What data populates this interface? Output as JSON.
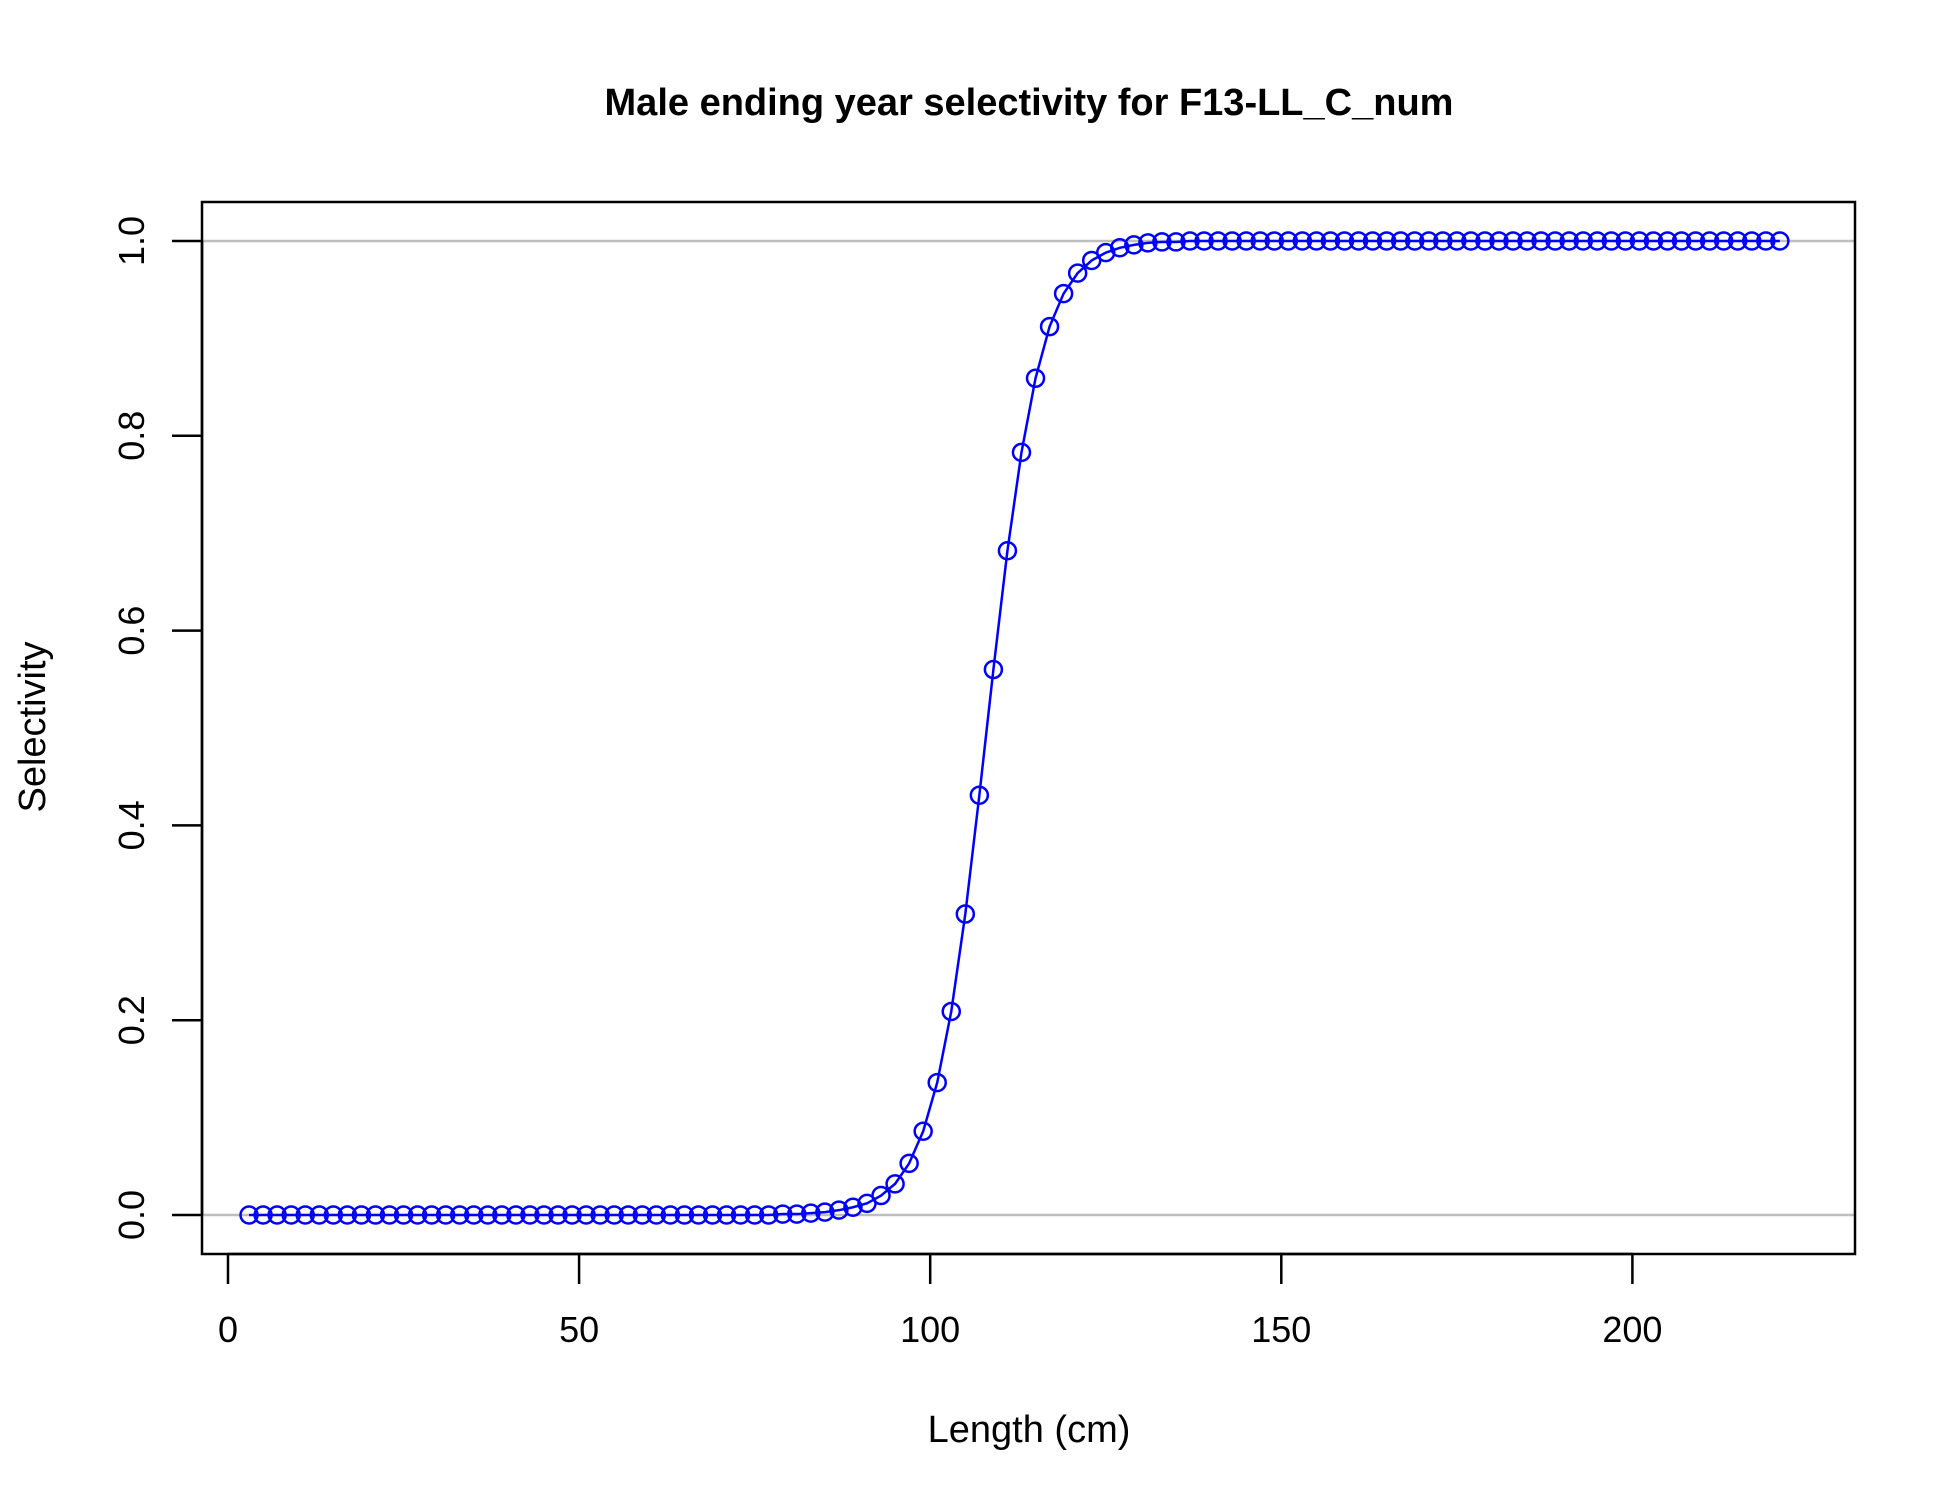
{
  "chart_data": {
    "type": "line",
    "title": "Male ending year selectivity for F13-LL_C_num",
    "xlabel": "Length (cm)",
    "ylabel": "Selectivity",
    "xlim": [
      -3.7,
      231.7
    ],
    "ylim": [
      -0.04,
      1.04
    ],
    "xticks": [
      0,
      50,
      100,
      150,
      200
    ],
    "yticks": [
      0.0,
      0.2,
      0.4,
      0.6,
      0.8,
      1.0
    ],
    "xtick_labels": [
      "0",
      "50",
      "100",
      "150",
      "200"
    ],
    "ytick_labels": [
      "0.0",
      "0.2",
      "0.4",
      "0.6",
      "0.8",
      "1.0"
    ],
    "reference_lines_y": [
      0,
      1
    ],
    "reference_line_color": "#bebebe",
    "series_color": "#0000ff",
    "grid": false,
    "legend": "none",
    "series": [
      {
        "marker": "open-circle",
        "x": [
          3,
          5,
          7,
          9,
          11,
          13,
          15,
          17,
          19,
          21,
          23,
          25,
          27,
          29,
          31,
          33,
          35,
          37,
          39,
          41,
          43,
          45,
          47,
          49,
          51,
          53,
          55,
          57,
          59,
          61,
          63,
          65,
          67,
          69,
          71,
          73,
          75,
          77,
          79,
          81,
          83,
          85,
          87,
          89,
          91,
          93,
          95,
          97,
          99,
          101,
          103,
          105,
          107,
          109,
          111,
          113,
          115,
          117,
          119,
          121,
          123,
          125,
          127,
          129,
          131,
          133,
          135,
          137,
          139,
          141,
          143,
          145,
          147,
          149,
          151,
          153,
          155,
          157,
          159,
          161,
          163,
          165,
          167,
          169,
          171,
          173,
          175,
          177,
          179,
          181,
          183,
          185,
          187,
          189,
          191,
          193,
          195,
          197,
          199,
          201,
          203,
          205,
          207,
          209,
          211,
          213,
          215,
          217,
          219,
          221
        ],
        "y": [
          0,
          0,
          0,
          0,
          0,
          0,
          0,
          0,
          0,
          0,
          0,
          0,
          0,
          0,
          0,
          0,
          0,
          0,
          0,
          0,
          0,
          0,
          0,
          0,
          0,
          0,
          0,
          0,
          0,
          0,
          0,
          0,
          0,
          0,
          0,
          0,
          0,
          0,
          0.001,
          0.001,
          0.002,
          0.003,
          0.005,
          0.008,
          0.012,
          0.02,
          0.032,
          0.053,
          0.086,
          0.136,
          0.209,
          0.309,
          0.431,
          0.56,
          0.682,
          0.783,
          0.859,
          0.912,
          0.946,
          0.967,
          0.98,
          0.988,
          0.993,
          0.996,
          0.998,
          0.999,
          0.999,
          1,
          1,
          1,
          1,
          1,
          1,
          1,
          1,
          1,
          1,
          1,
          1,
          1,
          1,
          1,
          1,
          1,
          1,
          1,
          1,
          1,
          1,
          1,
          1,
          1,
          1,
          1,
          1,
          1,
          1,
          1,
          1,
          1,
          1,
          1,
          1,
          1,
          1,
          1,
          1,
          1,
          1,
          1
        ]
      }
    ]
  }
}
